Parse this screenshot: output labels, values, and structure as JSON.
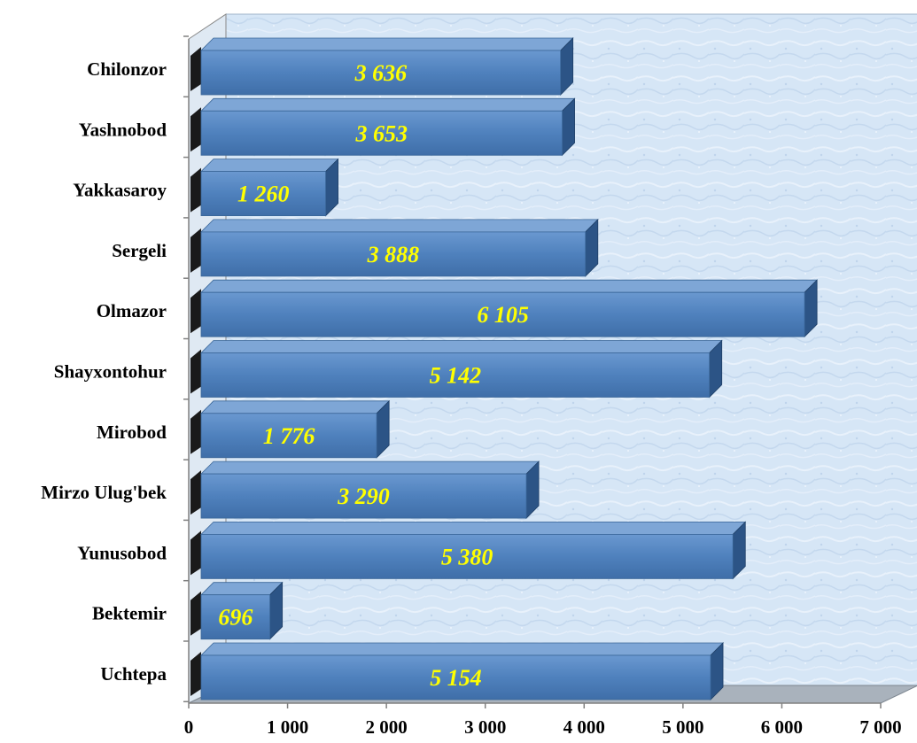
{
  "chart_data": {
    "type": "bar",
    "orientation": "horizontal",
    "style": "3d",
    "categories": [
      "Chilonzor",
      "Yashnobod",
      "Yakkasaroy",
      "Sergeli",
      "Olmazor",
      "Shayxontohur",
      "Mirobod",
      "Mirzo Ulug'bek",
      "Yunusobod",
      "Bektemir",
      "Uchtepa"
    ],
    "values": [
      3636,
      3653,
      1260,
      3888,
      6105,
      5142,
      1776,
      3290,
      5380,
      696,
      5154
    ],
    "value_labels": [
      "3 636",
      "3 653",
      "1 260",
      "3 888",
      "6 105",
      "5 142",
      "1 776",
      "3 290",
      "5 380",
      "696",
      "5 154"
    ],
    "xticks": [
      0,
      1000,
      2000,
      3000,
      4000,
      5000,
      6000,
      7000
    ],
    "xtick_labels": [
      "0",
      "1 000",
      "2 000",
      "3 000",
      "4 000",
      "5 000",
      "6 000",
      "7 000"
    ],
    "xlim": [
      0,
      7000
    ],
    "title": "",
    "xlabel": "",
    "ylabel": "",
    "grid": false,
    "legend": "none",
    "colors": {
      "bar_front": "#4f81bd",
      "bar_top": "#7ea6d6",
      "bar_side": "#2c5486",
      "data_label": "#ffff00",
      "back_wall": "#d6e6f6",
      "floor": "#a9b2bc",
      "side_wall": "#1a1a1a"
    }
  }
}
